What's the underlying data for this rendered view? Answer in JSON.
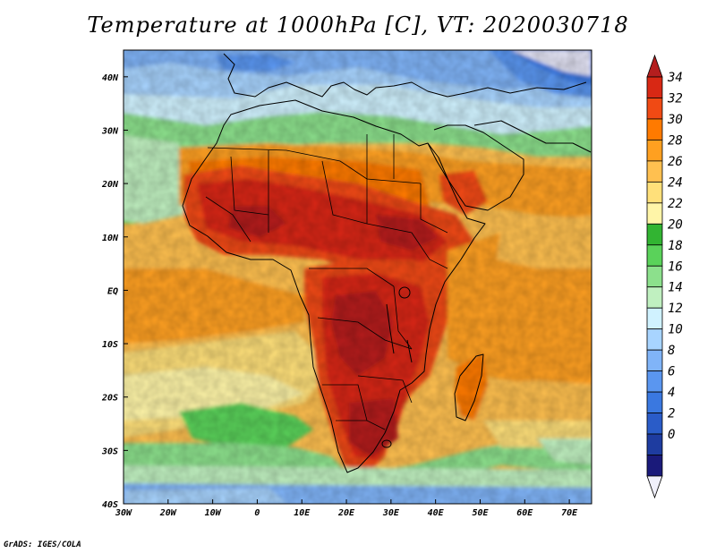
{
  "title": "Temperature at 1000hPa [C], VT: 2020030718",
  "credit": "GrADS: IGES/COLA",
  "map": {
    "lon_range": [
      -30,
      75
    ],
    "lat_range": [
      -40,
      45
    ],
    "lon_ticks": [
      {
        "value": -30,
        "label": "30W"
      },
      {
        "value": -20,
        "label": "20W"
      },
      {
        "value": -10,
        "label": "10W"
      },
      {
        "value": 0,
        "label": "0"
      },
      {
        "value": 10,
        "label": "10E"
      },
      {
        "value": 20,
        "label": "20E"
      },
      {
        "value": 30,
        "label": "30E"
      },
      {
        "value": 40,
        "label": "40E"
      },
      {
        "value": 50,
        "label": "50E"
      },
      {
        "value": 60,
        "label": "60E"
      },
      {
        "value": 70,
        "label": "70E"
      }
    ],
    "lat_ticks": [
      {
        "value": 40,
        "label": "40N"
      },
      {
        "value": 30,
        "label": "30N"
      },
      {
        "value": 20,
        "label": "20N"
      },
      {
        "value": 10,
        "label": "10N"
      },
      {
        "value": 0,
        "label": "EQ"
      },
      {
        "value": -10,
        "label": "10S"
      },
      {
        "value": -20,
        "label": "20S"
      },
      {
        "value": -30,
        "label": "30S"
      },
      {
        "value": -40,
        "label": "40S"
      }
    ]
  },
  "colorbar": {
    "labels": [
      "34",
      "32",
      "30",
      "28",
      "26",
      "24",
      "22",
      "20",
      "18",
      "16",
      "14",
      "12",
      "10",
      "8",
      "6",
      "4",
      "2",
      "0"
    ],
    "colors": [
      "#f0f0fa",
      "#1a1a7a",
      "#1e3ca0",
      "#2a5cc8",
      "#3a78e0",
      "#5a96f0",
      "#80b4f8",
      "#a8d4ff",
      "#d0f2ff",
      "#c0f0c0",
      "#8ce08c",
      "#5ad25a",
      "#32b432",
      "#fff5a8",
      "#ffe07a",
      "#ffc050",
      "#ffa020",
      "#ff7a00",
      "#f04a14",
      "#d82814",
      "#b41e1e"
    ]
  }
}
